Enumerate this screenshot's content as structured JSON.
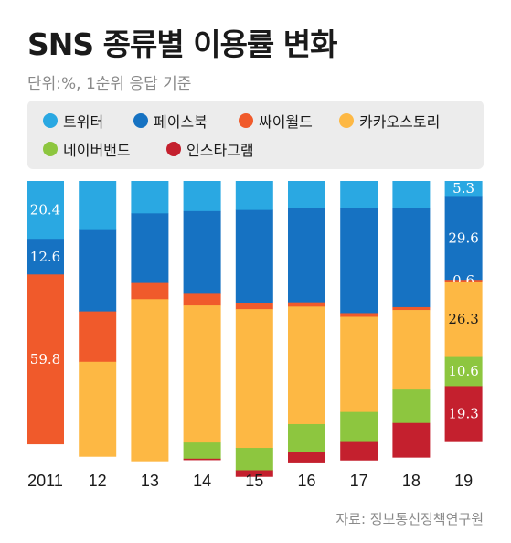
{
  "title": "SNS 종류별 이용률 변화",
  "subtitle": "단위:%, 1순위 응답 기준",
  "source": "자료: 정보통신정책연구원",
  "colors": {
    "트위터": "#2aa8e2",
    "페이스북": "#1672c2",
    "싸이월드": "#f05a2b",
    "카카오스토리": "#fdb844",
    "네이버밴드": "#8dc63f",
    "인스타그램": "#c4202e",
    "label_dark": "#ffffff",
    "label_light": "#ffffff",
    "label_on_yellow": "#1a1a1a"
  },
  "chart_data": {
    "type": "bar",
    "stacked": true,
    "stack_order_top_to_bottom": [
      "트위터",
      "페이스북",
      "싸이월드",
      "카카오스토리",
      "네이버밴드",
      "인스타그램"
    ],
    "categories": [
      "2011",
      "12",
      "13",
      "14",
      "15",
      "16",
      "17",
      "18",
      "19"
    ],
    "ylim": [
      0,
      100
    ],
    "legend": {
      "position": "top"
    },
    "series": [
      {
        "name": "트위터",
        "values": [
          20.4,
          17.3,
          11.4,
          10.6,
          10.2,
          9.6,
          9.6,
          9.6,
          5.3
        ]
      },
      {
        "name": "페이스북",
        "values": [
          12.6,
          28.7,
          24.6,
          29.2,
          32.8,
          33.2,
          37.0,
          34.9,
          29.6
        ]
      },
      {
        "name": "싸이월드",
        "values": [
          59.8,
          17.8,
          5.7,
          4.1,
          2.2,
          1.5,
          1.3,
          1.0,
          0.6
        ]
      },
      {
        "name": "카카오스토리",
        "values": [
          0,
          33.4,
          57.1,
          48.4,
          49.0,
          41.5,
          33.6,
          28.1,
          26.3
        ]
      },
      {
        "name": "네이버밴드",
        "values": [
          0,
          0,
          0,
          5.7,
          7.9,
          10.0,
          10.3,
          11.8,
          10.6
        ]
      },
      {
        "name": "인스타그램",
        "values": [
          0,
          0,
          0,
          0.4,
          2.2,
          3.4,
          6.7,
          12.1,
          19.3
        ]
      }
    ],
    "data_labels": {
      "2011": {
        "트위터": "20.4",
        "페이스북": "12.6",
        "싸이월드": "59.8"
      },
      "19": {
        "트위터": "5.3",
        "페이스북": "29.6",
        "싸이월드": "0.6",
        "카카오스토리": "26.3",
        "네이버밴드": "10.6",
        "인스타그램": "19.3"
      }
    }
  }
}
